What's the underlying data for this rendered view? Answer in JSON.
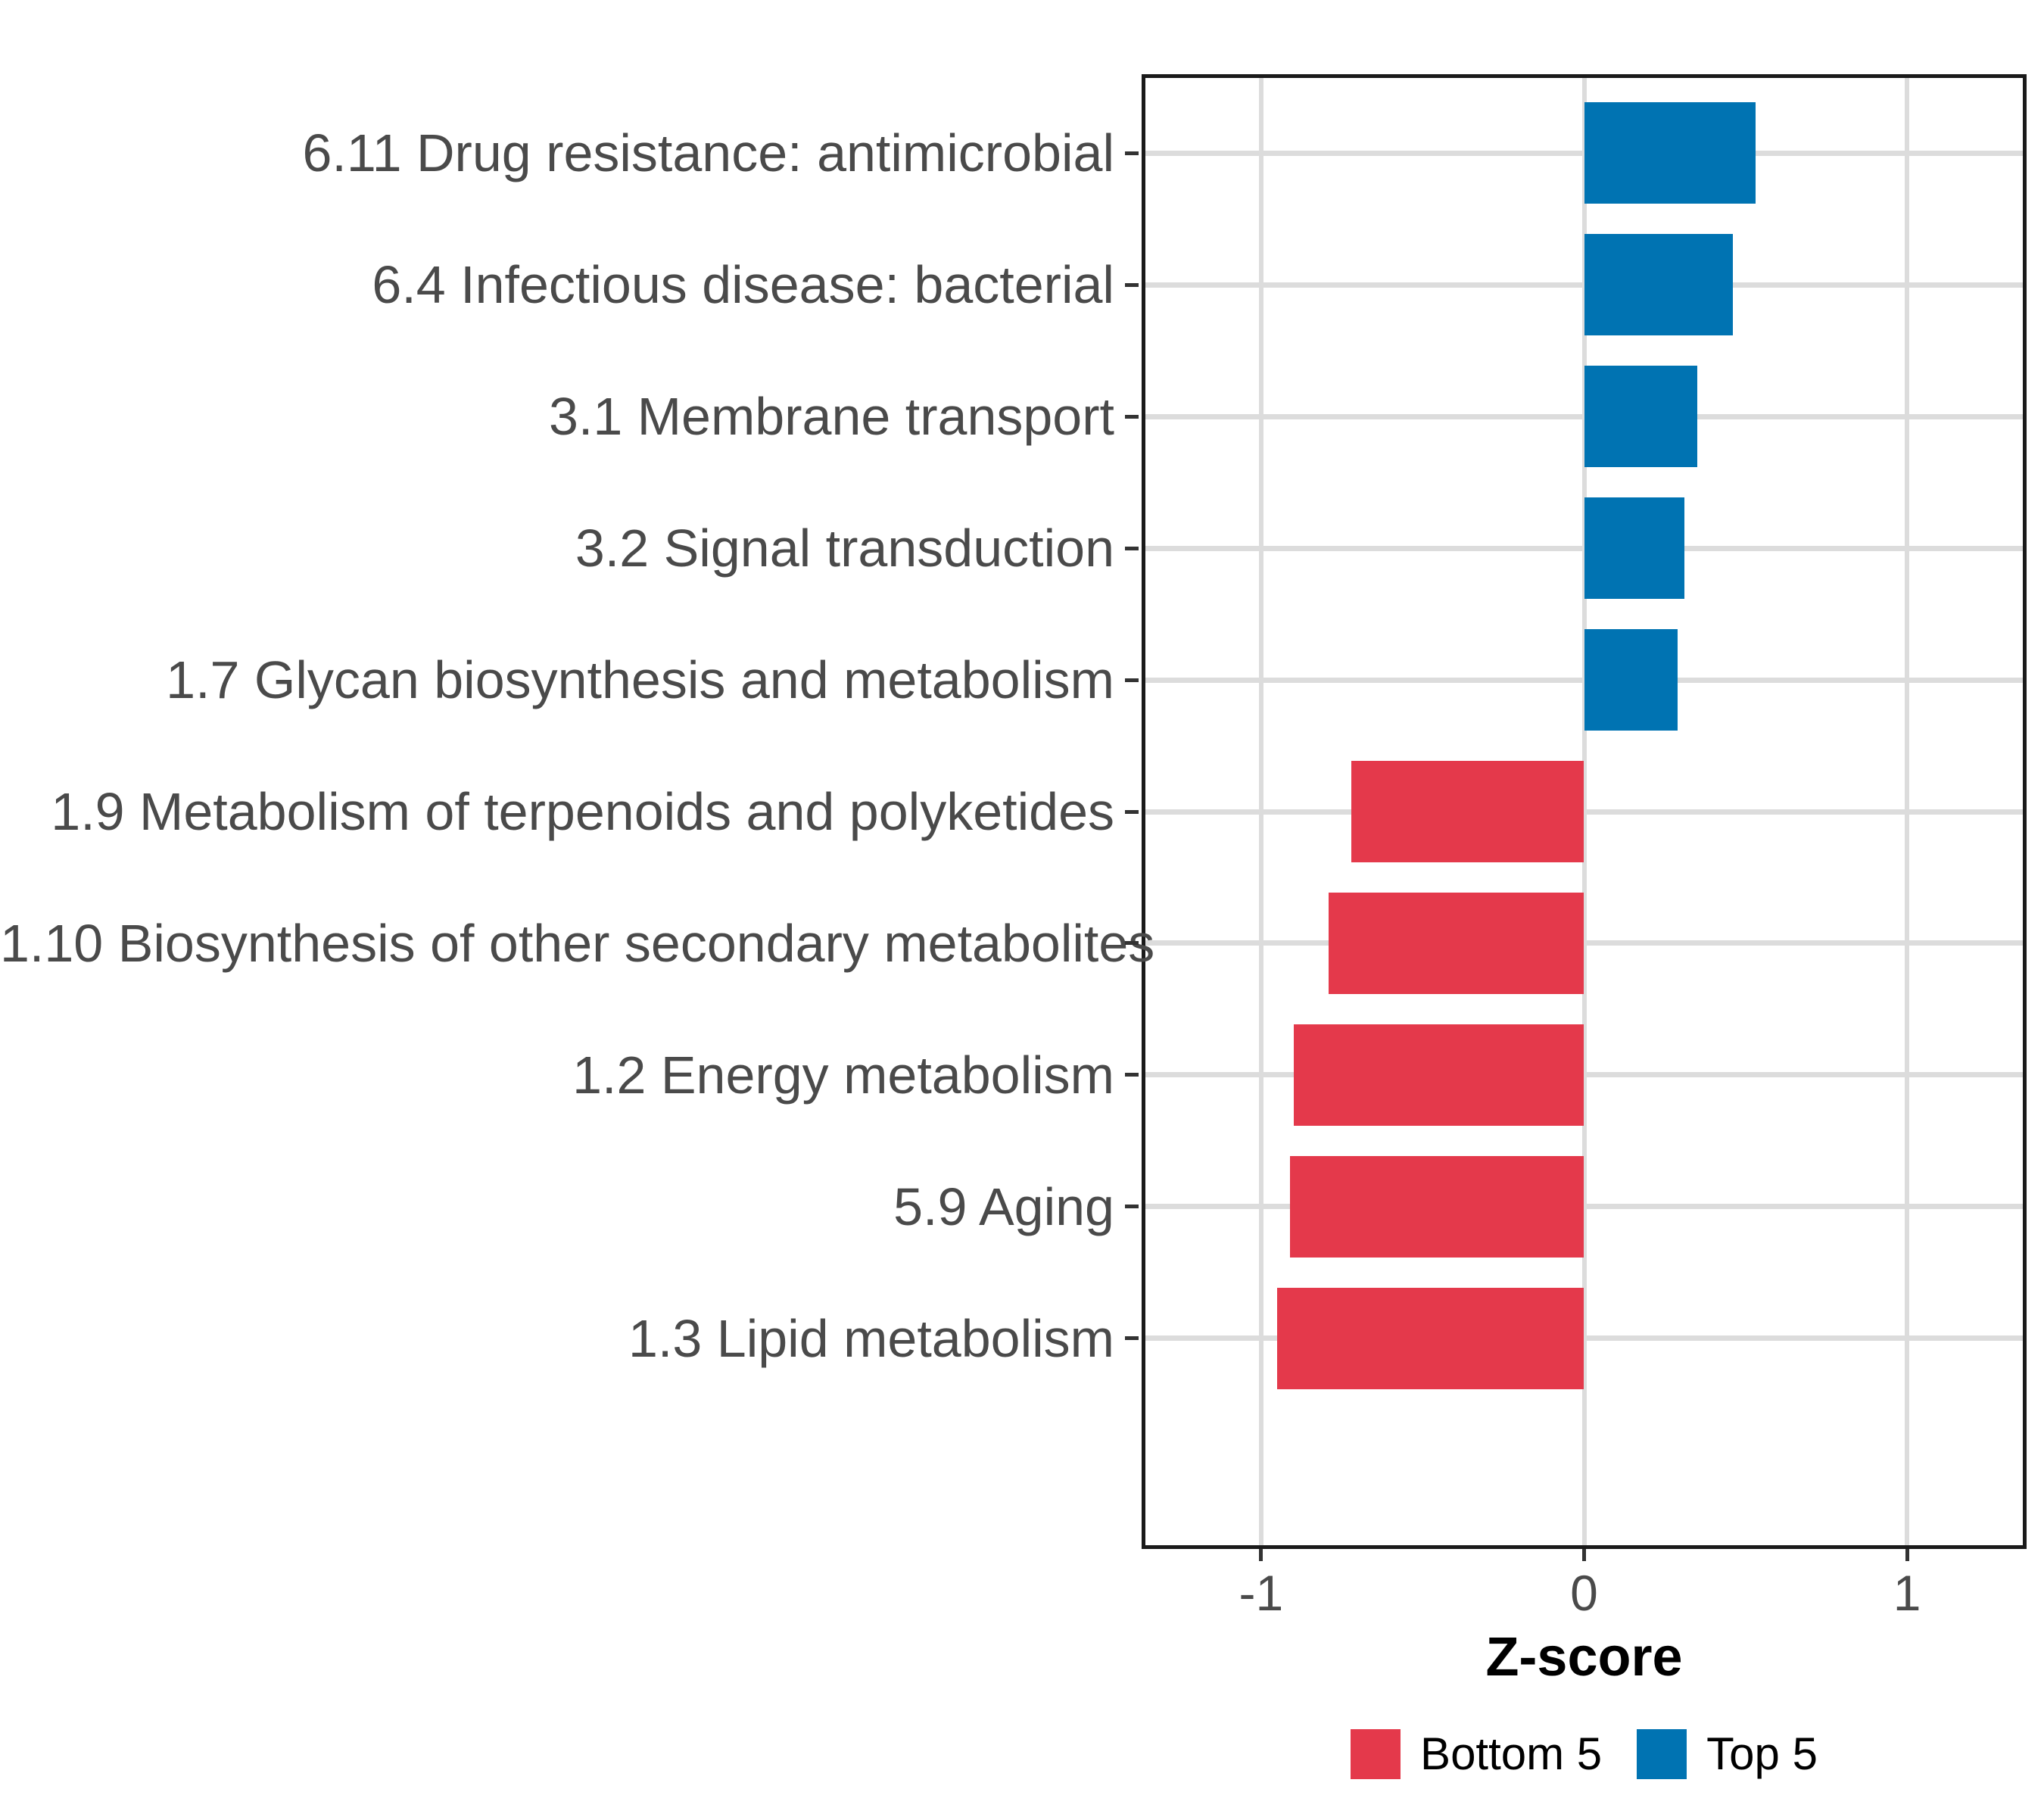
{
  "chart_data": {
    "type": "bar",
    "orientation": "horizontal",
    "title": "",
    "xlabel": "Z-score",
    "ylabel": "",
    "xlim": [
      -1.37,
      1.37
    ],
    "grid": "major-only",
    "legend_position": "bottom",
    "x_ticks": [
      {
        "label": "-1",
        "value": -1
      },
      {
        "label": "0",
        "value": 0
      },
      {
        "label": "1",
        "value": 1
      }
    ],
    "bars": [
      {
        "label": "6.11 Drug resistance: antimicrobial",
        "value": 0.53,
        "group": "Top 5"
      },
      {
        "label": "6.4 Infectious disease: bacterial",
        "value": 0.46,
        "group": "Top 5"
      },
      {
        "label": "3.1 Membrane transport",
        "value": 0.35,
        "group": "Top 5"
      },
      {
        "label": "3.2 Signal transduction",
        "value": 0.31,
        "group": "Top 5"
      },
      {
        "label": "1.7 Glycan biosynthesis and metabolism",
        "value": 0.29,
        "group": "Top 5"
      },
      {
        "label": "1.9 Metabolism of terpenoids and polyketides",
        "value": -0.72,
        "group": "Bottom 5"
      },
      {
        "label": "1.10 Biosynthesis of other secondary metabolites",
        "value": -0.79,
        "group": "Bottom 5"
      },
      {
        "label": "1.2 Energy metabolism",
        "value": -0.9,
        "group": "Bottom 5"
      },
      {
        "label": "5.9 Aging",
        "value": -0.91,
        "group": "Bottom 5"
      },
      {
        "label": "1.3 Lipid metabolism",
        "value": -0.95,
        "group": "Bottom 5"
      }
    ]
  },
  "legend": {
    "items": [
      {
        "label": "Bottom 5",
        "color": "#E4394B"
      },
      {
        "label": "Top 5",
        "color": "#0073B2"
      }
    ]
  },
  "style": {
    "bottom5_color": "#E4394B",
    "top5_color": "#0073B2",
    "grid_color": "#DCDCDC",
    "panel_border_color": "#1A1A1A",
    "axis_text_color": "#4A4A4A",
    "tick_color": "#333333",
    "background_color": "#FFFFFF"
  }
}
